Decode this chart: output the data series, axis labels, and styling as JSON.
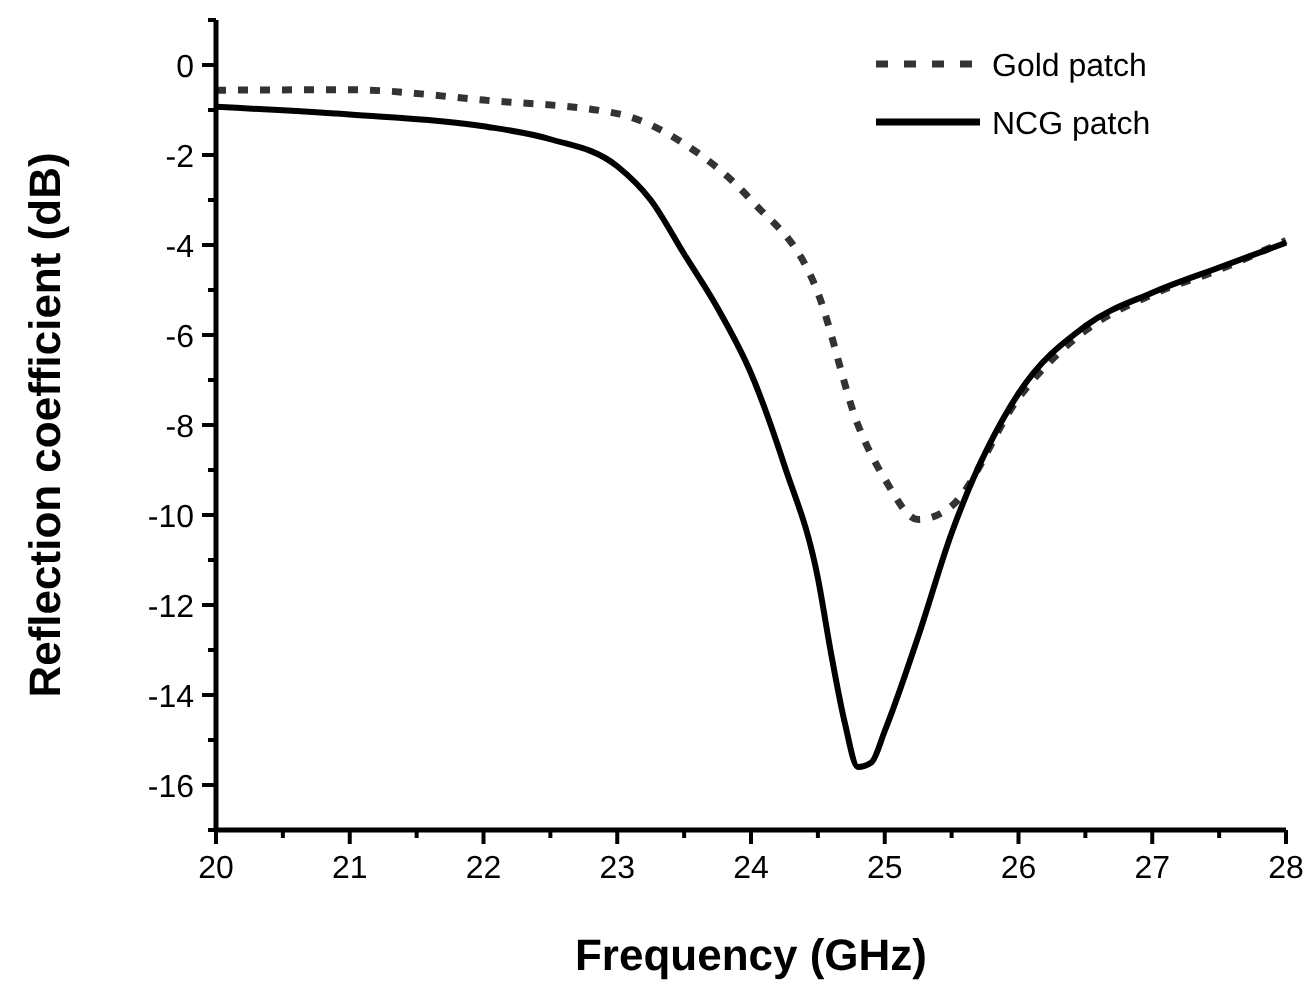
{
  "chart_data": {
    "type": "line",
    "xlabel": "Frequency (GHz)",
    "ylabel": "Reflection coefficient (dB)",
    "xlim": [
      20,
      28
    ],
    "ylim": [
      -17,
      1
    ],
    "xticks": [
      20,
      {
        "value": 20.5,
        "label": null
      },
      21,
      {
        "value": 21.5,
        "label": null
      },
      22,
      {
        "value": 22.5,
        "label": null
      },
      23,
      {
        "value": 23.5,
        "label": null
      },
      24,
      {
        "value": 24.5,
        "label": null
      },
      25,
      {
        "value": 25.5,
        "label": null
      },
      26,
      {
        "value": 26.5,
        "label": null
      },
      27,
      {
        "value": 27.5,
        "label": null
      },
      28
    ],
    "yticks": [
      {
        "value": -17,
        "label": null
      },
      -16,
      {
        "value": -15,
        "label": null
      },
      -14,
      {
        "value": -13,
        "label": null
      },
      -12,
      {
        "value": -11,
        "label": null
      },
      -10,
      {
        "value": -9,
        "label": null
      },
      -8,
      {
        "value": -7,
        "label": null
      },
      -6,
      {
        "value": -5,
        "label": null
      },
      -4,
      {
        "value": -3,
        "label": null
      },
      -2,
      {
        "value": -1,
        "label": null
      },
      0,
      {
        "value": 1,
        "label": null
      }
    ],
    "grid": false,
    "legend": "top right",
    "series": [
      {
        "name": "Gold patch",
        "color": "#333333",
        "line_style": "dotted",
        "x": [
          20,
          21,
          22,
          23,
          23.5,
          24,
          24.5,
          24.8,
          25,
          25.25,
          25.5,
          26,
          26.5,
          27,
          27.5,
          28
        ],
        "values": [
          -0.56,
          -0.55,
          -0.78,
          -1.08,
          -1.75,
          -3.0,
          -5.06,
          -8.0,
          -9.2,
          -10.1,
          -9.8,
          -7.4,
          -5.9,
          -5.1,
          -4.55,
          -3.9
        ]
      },
      {
        "name": "NCG patch",
        "color": "#000000",
        "line_style": "solid",
        "x": [
          20,
          21,
          22,
          22.5,
          23,
          23.25,
          23.5,
          23.75,
          24,
          24.25,
          24.5,
          24.6,
          24.7,
          24.8,
          24.9,
          25,
          25.25,
          25.5,
          26,
          26.5,
          27,
          27.5,
          28
        ],
        "values": [
          -0.93,
          -1.1,
          -1.36,
          -1.65,
          -2.25,
          -3.0,
          -4.2,
          -5.4,
          -6.85,
          -8.9,
          -11.4,
          -13.1,
          -14.6,
          -15.6,
          -15.5,
          -14.8,
          -12.7,
          -10.4,
          -7.3,
          -5.8,
          -5.06,
          -4.5,
          -3.95
        ]
      }
    ]
  }
}
